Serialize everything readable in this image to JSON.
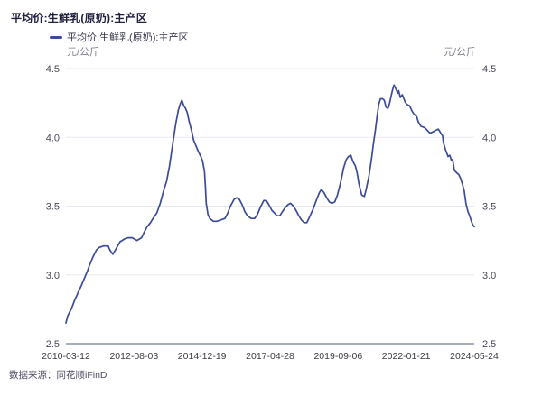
{
  "header": {
    "title": "平均价:生鲜乳(原奶):主产区"
  },
  "legend": {
    "label": "平均价:生鲜乳(原奶):主产区"
  },
  "axes": {
    "unit_left": "元/公斤",
    "unit_right": "元/公斤"
  },
  "footer": {
    "source": "数据来源：同花顺iFinD"
  },
  "colors": {
    "line": "#3c4b97",
    "grid": "#e9e9f1",
    "axis_line": "#a6adbb",
    "y_tick_text": "#4a4a58",
    "x_tick_text": "#3b3b46"
  },
  "chart_data": {
    "type": "line",
    "title": "平均价:生鲜乳(原奶):主产区",
    "ylabel": "元/公斤",
    "legend_position": "top-left",
    "grid": "horizontal-only",
    "ylim": [
      2.5,
      4.5
    ],
    "yticks": [
      2.5,
      3.0,
      3.5,
      4.0,
      4.5
    ],
    "xlim_years": [
      2010.19,
      2024.39
    ],
    "xtick_labels": [
      "2010-03-12",
      "2012-08-03",
      "2014-12-19",
      "2017-04-28",
      "2019-09-06",
      "2022-01-21",
      "2024-05-24"
    ],
    "series": [
      {
        "name": "平均价:生鲜乳(原奶):主产区",
        "points": [
          [
            2010.19,
            2.65
          ],
          [
            2010.25,
            2.7
          ],
          [
            2010.32,
            2.73
          ],
          [
            2010.35,
            2.74
          ],
          [
            2010.41,
            2.77
          ],
          [
            2010.5,
            2.82
          ],
          [
            2010.57,
            2.85
          ],
          [
            2010.63,
            2.88
          ],
          [
            2010.72,
            2.92
          ],
          [
            2010.82,
            2.97
          ],
          [
            2010.94,
            3.03
          ],
          [
            2011.03,
            3.08
          ],
          [
            2011.13,
            3.13
          ],
          [
            2011.25,
            3.18
          ],
          [
            2011.35,
            3.2
          ],
          [
            2011.5,
            3.21
          ],
          [
            2011.66,
            3.21
          ],
          [
            2011.72,
            3.18
          ],
          [
            2011.82,
            3.15
          ],
          [
            2011.91,
            3.18
          ],
          [
            2012.07,
            3.24
          ],
          [
            2012.22,
            3.26
          ],
          [
            2012.35,
            3.27
          ],
          [
            2012.5,
            3.27
          ],
          [
            2012.66,
            3.25
          ],
          [
            2012.82,
            3.27
          ],
          [
            2012.91,
            3.31
          ],
          [
            2013.01,
            3.35
          ],
          [
            2013.13,
            3.38
          ],
          [
            2013.22,
            3.41
          ],
          [
            2013.35,
            3.45
          ],
          [
            2013.47,
            3.52
          ],
          [
            2013.6,
            3.62
          ],
          [
            2013.69,
            3.68
          ],
          [
            2013.79,
            3.79
          ],
          [
            2013.91,
            3.96
          ],
          [
            2014.01,
            4.1
          ],
          [
            2014.1,
            4.2
          ],
          [
            2014.16,
            4.24
          ],
          [
            2014.22,
            4.27
          ],
          [
            2014.29,
            4.23
          ],
          [
            2014.35,
            4.21
          ],
          [
            2014.41,
            4.18
          ],
          [
            2014.47,
            4.12
          ],
          [
            2014.57,
            4.04
          ],
          [
            2014.63,
            3.98
          ],
          [
            2014.69,
            3.95
          ],
          [
            2014.79,
            3.9
          ],
          [
            2014.88,
            3.86
          ],
          [
            2014.94,
            3.83
          ],
          [
            2015.01,
            3.75
          ],
          [
            2015.04,
            3.64
          ],
          [
            2015.07,
            3.52
          ],
          [
            2015.13,
            3.44
          ],
          [
            2015.19,
            3.41
          ],
          [
            2015.32,
            3.39
          ],
          [
            2015.44,
            3.39
          ],
          [
            2015.57,
            3.4
          ],
          [
            2015.72,
            3.41
          ],
          [
            2015.82,
            3.45
          ],
          [
            2015.91,
            3.5
          ],
          [
            2016.04,
            3.55
          ],
          [
            2016.13,
            3.56
          ],
          [
            2016.22,
            3.55
          ],
          [
            2016.32,
            3.51
          ],
          [
            2016.41,
            3.46
          ],
          [
            2016.5,
            3.43
          ],
          [
            2016.63,
            3.41
          ],
          [
            2016.75,
            3.41
          ],
          [
            2016.85,
            3.44
          ],
          [
            2016.97,
            3.5
          ],
          [
            2017.07,
            3.54
          ],
          [
            2017.16,
            3.54
          ],
          [
            2017.25,
            3.51
          ],
          [
            2017.35,
            3.47
          ],
          [
            2017.44,
            3.45
          ],
          [
            2017.53,
            3.43
          ],
          [
            2017.63,
            3.43
          ],
          [
            2017.72,
            3.46
          ],
          [
            2017.82,
            3.49
          ],
          [
            2017.91,
            3.51
          ],
          [
            2018.0,
            3.52
          ],
          [
            2018.1,
            3.5
          ],
          [
            2018.19,
            3.47
          ],
          [
            2018.29,
            3.43
          ],
          [
            2018.38,
            3.4
          ],
          [
            2018.47,
            3.38
          ],
          [
            2018.57,
            3.38
          ],
          [
            2018.66,
            3.42
          ],
          [
            2018.79,
            3.48
          ],
          [
            2018.91,
            3.55
          ],
          [
            2019.01,
            3.6
          ],
          [
            2019.07,
            3.62
          ],
          [
            2019.16,
            3.6
          ],
          [
            2019.26,
            3.56
          ],
          [
            2019.35,
            3.53
          ],
          [
            2019.44,
            3.52
          ],
          [
            2019.54,
            3.53
          ],
          [
            2019.63,
            3.58
          ],
          [
            2019.72,
            3.65
          ],
          [
            2019.79,
            3.72
          ],
          [
            2019.85,
            3.78
          ],
          [
            2019.94,
            3.84
          ],
          [
            2020.01,
            3.86
          ],
          [
            2020.1,
            3.87
          ],
          [
            2020.16,
            3.83
          ],
          [
            2020.26,
            3.79
          ],
          [
            2020.32,
            3.74
          ],
          [
            2020.38,
            3.66
          ],
          [
            2020.48,
            3.58
          ],
          [
            2020.57,
            3.57
          ],
          [
            2020.63,
            3.62
          ],
          [
            2020.73,
            3.72
          ],
          [
            2020.82,
            3.85
          ],
          [
            2020.88,
            3.95
          ],
          [
            2020.95,
            4.05
          ],
          [
            2021.01,
            4.15
          ],
          [
            2021.07,
            4.24
          ],
          [
            2021.13,
            4.28
          ],
          [
            2021.2,
            4.28
          ],
          [
            2021.26,
            4.27
          ],
          [
            2021.32,
            4.22
          ],
          [
            2021.39,
            4.21
          ],
          [
            2021.45,
            4.25
          ],
          [
            2021.51,
            4.31
          ],
          [
            2021.57,
            4.36
          ],
          [
            2021.6,
            4.38
          ],
          [
            2021.67,
            4.35
          ],
          [
            2021.73,
            4.32
          ],
          [
            2021.76,
            4.34
          ],
          [
            2021.82,
            4.29
          ],
          [
            2021.89,
            4.31
          ],
          [
            2021.98,
            4.26
          ],
          [
            2022.04,
            4.24
          ],
          [
            2022.14,
            4.23
          ],
          [
            2022.23,
            4.19
          ],
          [
            2022.29,
            4.17
          ],
          [
            2022.39,
            4.15
          ],
          [
            2022.45,
            4.11
          ],
          [
            2022.54,
            4.08
          ],
          [
            2022.67,
            4.07
          ],
          [
            2022.76,
            4.05
          ],
          [
            2022.85,
            4.03
          ],
          [
            2022.95,
            4.04
          ],
          [
            2023.04,
            4.05
          ],
          [
            2023.14,
            4.06
          ],
          [
            2023.23,
            4.03
          ],
          [
            2023.29,
            4.01
          ],
          [
            2023.32,
            3.96
          ],
          [
            2023.39,
            3.91
          ],
          [
            2023.48,
            3.86
          ],
          [
            2023.54,
            3.87
          ],
          [
            2023.6,
            3.83
          ],
          [
            2023.64,
            3.84
          ],
          [
            2023.7,
            3.76
          ],
          [
            2023.79,
            3.74
          ],
          [
            2023.85,
            3.73
          ],
          [
            2023.92,
            3.7
          ],
          [
            2023.98,
            3.66
          ],
          [
            2024.04,
            3.61
          ],
          [
            2024.1,
            3.52
          ],
          [
            2024.17,
            3.46
          ],
          [
            2024.23,
            3.43
          ],
          [
            2024.29,
            3.39
          ],
          [
            2024.35,
            3.36
          ],
          [
            2024.39,
            3.35
          ]
        ]
      }
    ]
  }
}
